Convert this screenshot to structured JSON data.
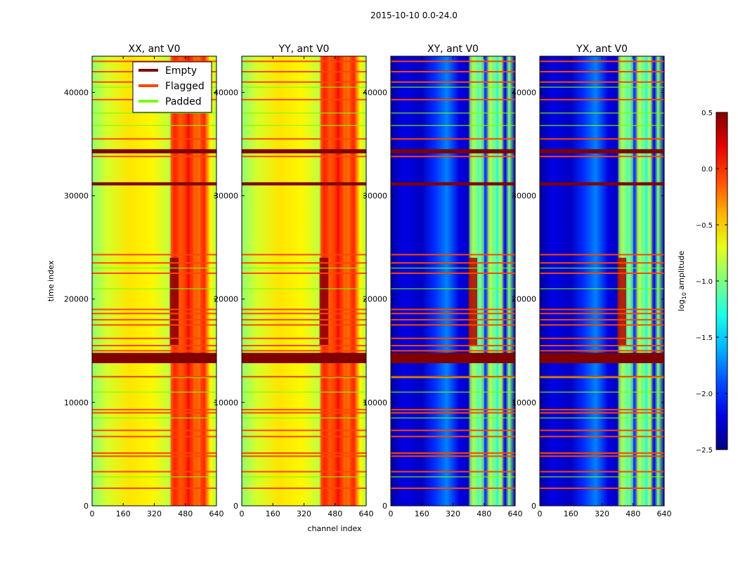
{
  "chart_data": {
    "type": "heatmap",
    "suptitle": "2015-10-10 0.0-24.0",
    "xlabel": "channel index",
    "ylabel": "time index",
    "xlim": [
      0,
      640
    ],
    "ylim": [
      0,
      43500
    ],
    "xticks": [
      0,
      160,
      320,
      480,
      640
    ],
    "yticks": [
      0,
      10000,
      20000,
      30000,
      40000
    ],
    "panels": [
      {
        "title": "XX, ant V0",
        "kind": "parallel"
      },
      {
        "title": "YY, ant V0",
        "kind": "parallel"
      },
      {
        "title": "XY, ant V0",
        "kind": "cross"
      },
      {
        "title": "YX, ant V0",
        "kind": "cross"
      }
    ],
    "legend": {
      "position": "top-right of first panel",
      "entries": [
        {
          "label": "Empty",
          "color": "#800000"
        },
        {
          "label": "Flagged",
          "color": "#ff4500"
        },
        {
          "label": "Padded",
          "color": "#7cfc00"
        }
      ]
    },
    "colorbar": {
      "label": "log",
      "label_sub": "10",
      "label_rest": " amplitude",
      "range": [
        -2.5,
        0.5
      ],
      "ticks": [
        "0.5",
        "0.0",
        "−0.5",
        "−1.0",
        "−1.5",
        "−2.0",
        "−2.5"
      ],
      "tick_values": [
        0.5,
        0.0,
        -0.5,
        -1.0,
        -1.5,
        -2.0,
        -2.5
      ]
    },
    "empty_bands": [
      [
        13800,
        14800
      ],
      [
        31000,
        31300
      ],
      [
        34100,
        34500
      ]
    ],
    "flagged_rows": [
      1700,
      3300,
      4800,
      5100,
      6700,
      7300,
      9000,
      9300,
      12500,
      15000,
      15500,
      16200,
      17500,
      18000,
      18600,
      19000,
      22500,
      23500,
      24300,
      33800,
      35500,
      39300,
      41000,
      42000,
      43000
    ],
    "padded_rows": [
      2800,
      8500,
      11000,
      12400,
      21000,
      23000,
      36800,
      38000,
      40500
    ]
  }
}
